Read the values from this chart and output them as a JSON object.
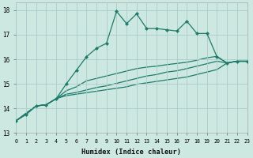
{
  "xlabel": "Humidex (Indice chaleur)",
  "bg_color": "#cce8e0",
  "grid_color": "#aacccc",
  "line_color": "#1e7b6a",
  "xlim": [
    0,
    23
  ],
  "ylim": [
    13,
    18.3
  ],
  "xticks": [
    0,
    1,
    2,
    3,
    4,
    5,
    6,
    7,
    8,
    9,
    10,
    11,
    12,
    13,
    14,
    15,
    16,
    17,
    18,
    19,
    20,
    21,
    22,
    23
  ],
  "yticks": [
    13,
    14,
    15,
    16,
    17,
    18
  ],
  "line1_x": [
    0,
    1,
    2,
    3,
    4,
    5,
    6,
    7,
    8,
    9,
    10,
    11,
    12,
    13,
    14,
    15,
    16,
    17,
    18,
    19,
    20,
    21,
    22,
    23
  ],
  "line1_y": [
    13.5,
    13.75,
    14.1,
    14.15,
    14.4,
    15.0,
    15.55,
    16.1,
    16.45,
    16.65,
    17.95,
    17.45,
    17.85,
    17.25,
    17.25,
    17.2,
    17.15,
    17.55,
    17.05,
    17.05,
    16.1,
    15.85,
    15.92,
    15.92
  ],
  "line2_x": [
    0,
    2,
    3,
    4,
    5,
    6,
    7,
    8,
    9,
    10,
    11,
    12,
    13,
    14,
    15,
    16,
    17,
    18,
    19,
    20,
    21,
    22,
    23
  ],
  "line2_y": [
    13.5,
    14.1,
    14.15,
    14.4,
    14.72,
    14.88,
    15.12,
    15.22,
    15.32,
    15.42,
    15.52,
    15.62,
    15.68,
    15.72,
    15.78,
    15.83,
    15.88,
    15.96,
    16.06,
    16.12,
    15.85,
    15.92,
    15.92
  ],
  "line3_x": [
    0,
    2,
    3,
    4,
    5,
    6,
    7,
    8,
    9,
    10,
    11,
    12,
    13,
    14,
    15,
    16,
    17,
    18,
    19,
    20,
    21,
    22,
    23
  ],
  "line3_y": [
    13.5,
    14.1,
    14.15,
    14.4,
    14.58,
    14.65,
    14.75,
    14.85,
    14.92,
    15.02,
    15.12,
    15.22,
    15.32,
    15.38,
    15.48,
    15.53,
    15.62,
    15.72,
    15.82,
    15.92,
    15.85,
    15.92,
    15.92
  ],
  "line4_x": [
    0,
    2,
    3,
    4,
    5,
    6,
    7,
    8,
    9,
    10,
    11,
    12,
    13,
    14,
    15,
    16,
    17,
    18,
    19,
    20,
    21,
    22,
    23
  ],
  "line4_y": [
    13.5,
    14.1,
    14.15,
    14.4,
    14.52,
    14.58,
    14.64,
    14.7,
    14.76,
    14.82,
    14.88,
    14.98,
    15.04,
    15.1,
    15.16,
    15.22,
    15.28,
    15.38,
    15.48,
    15.58,
    15.85,
    15.92,
    15.92
  ]
}
